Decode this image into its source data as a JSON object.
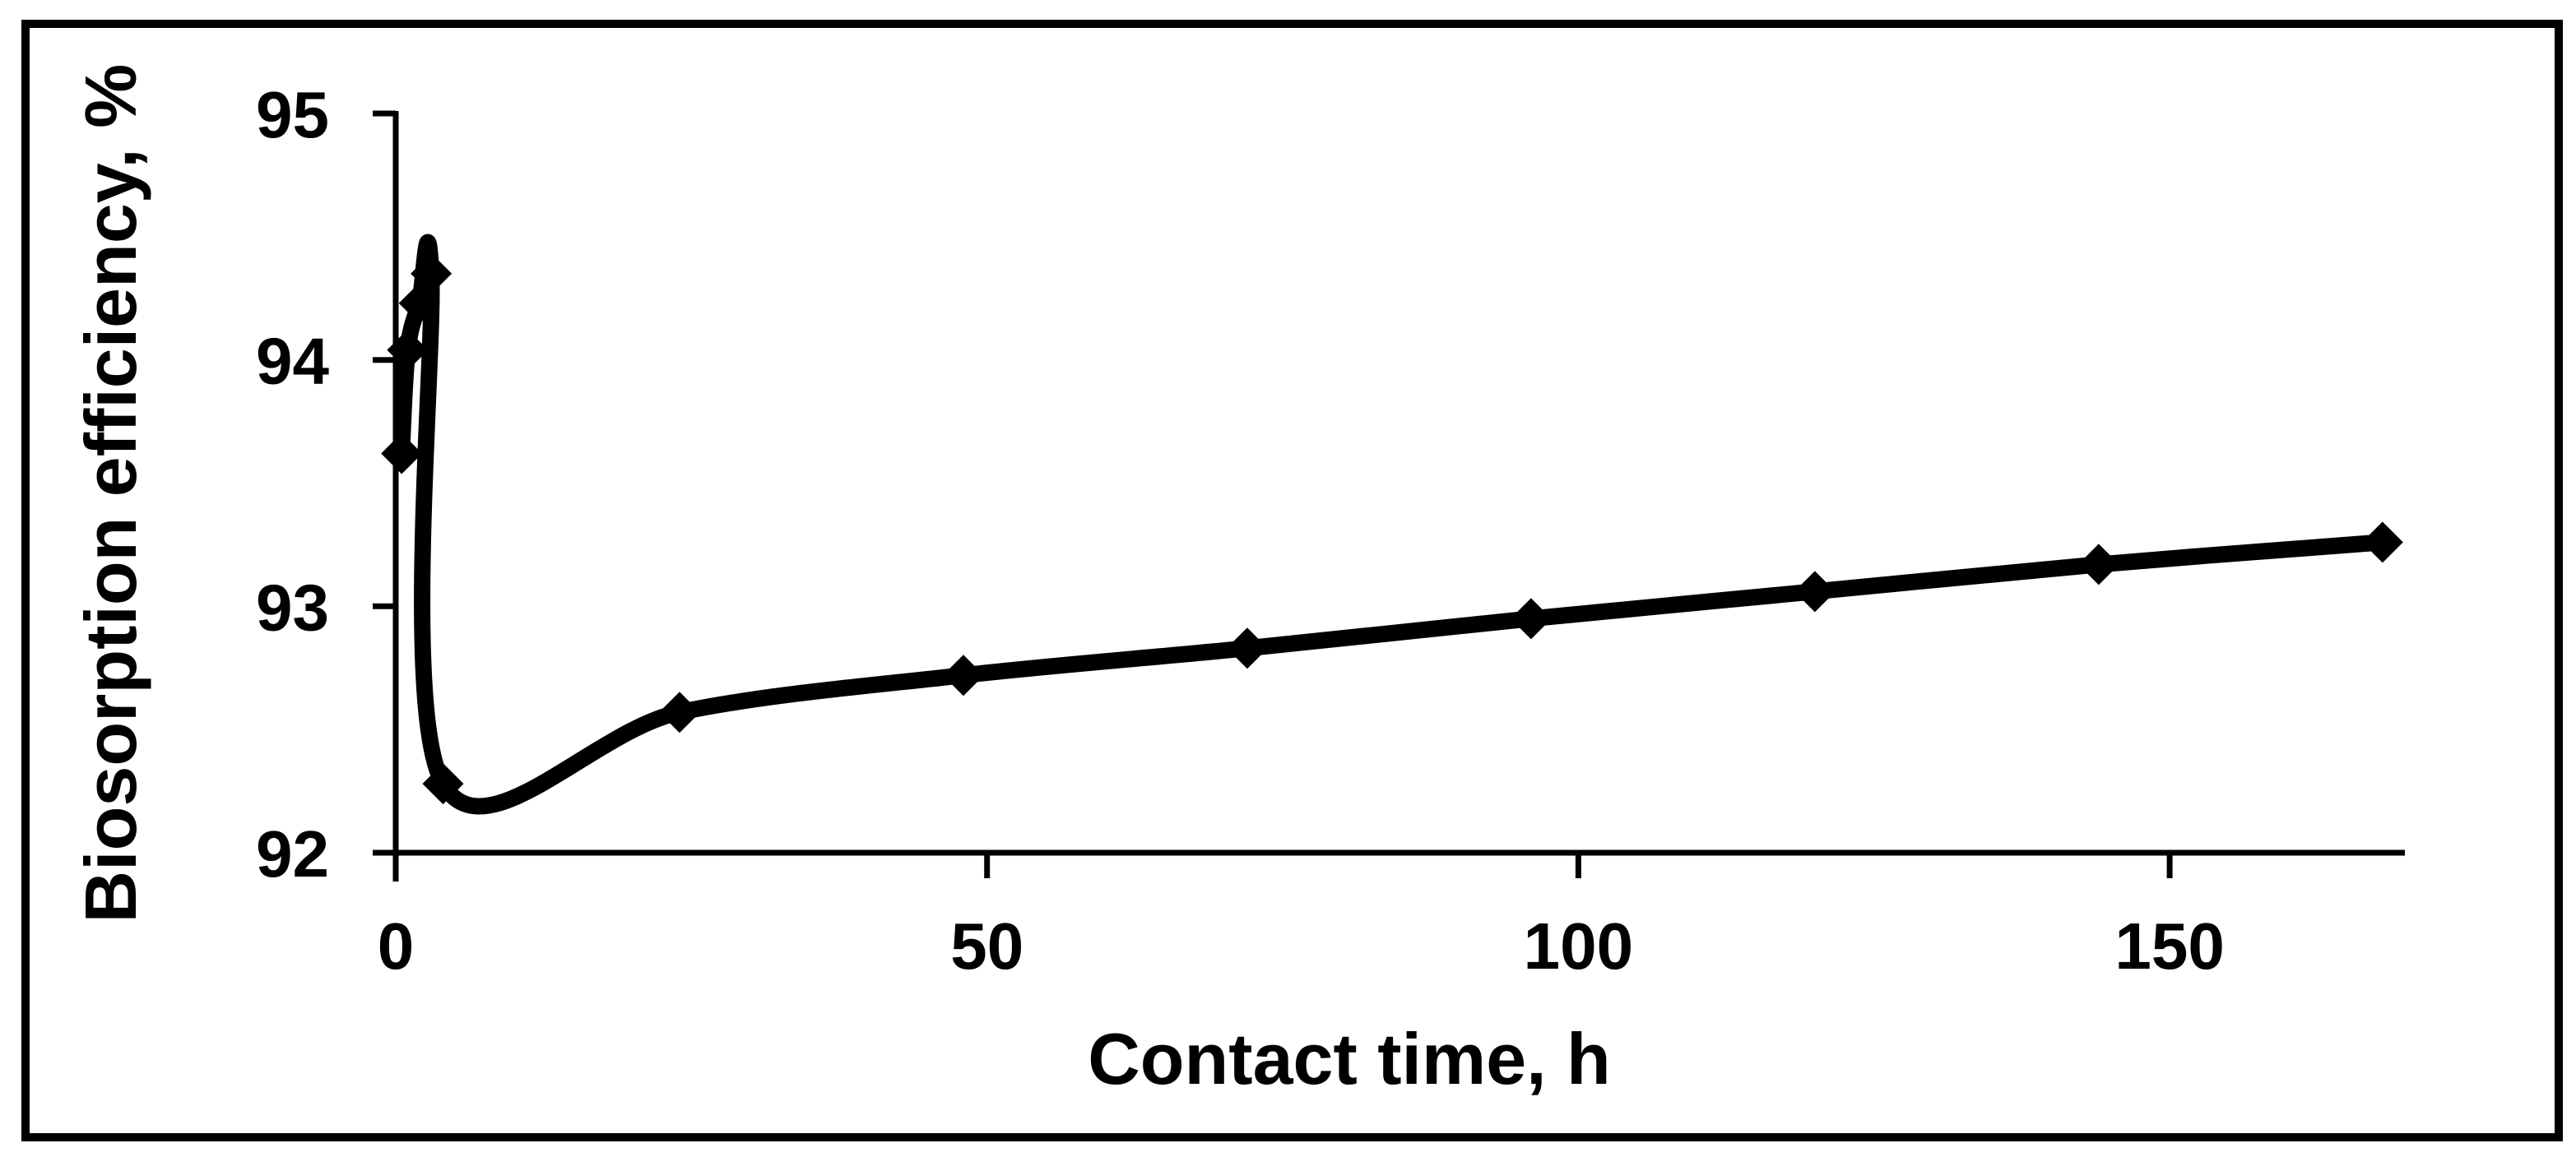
{
  "chart_data": {
    "type": "line",
    "title": "",
    "xlabel": "Contact time, h",
    "ylabel": "Biosorption efficiency, %",
    "x": [
      0.5,
      1,
      2,
      3,
      4,
      24,
      48,
      72,
      96,
      120,
      144,
      168
    ],
    "series": [
      {
        "name": "Biosorption efficiency",
        "values": [
          93.62,
          94.04,
          94.23,
          94.35,
          92.28,
          92.57,
          92.72,
          92.83,
          92.95,
          93.06,
          93.17,
          93.26
        ]
      }
    ],
    "x_ticks": [
      0,
      50,
      100,
      150
    ],
    "y_ticks": [
      95,
      94,
      93,
      92
    ],
    "xlim": [
      0,
      170
    ],
    "ylim": [
      92,
      95
    ],
    "grid": false,
    "legend": "none",
    "smooth": true,
    "marker": "diamond",
    "line_color": "#000000",
    "background_color": "#ffffff",
    "frame_color": "#000000"
  }
}
